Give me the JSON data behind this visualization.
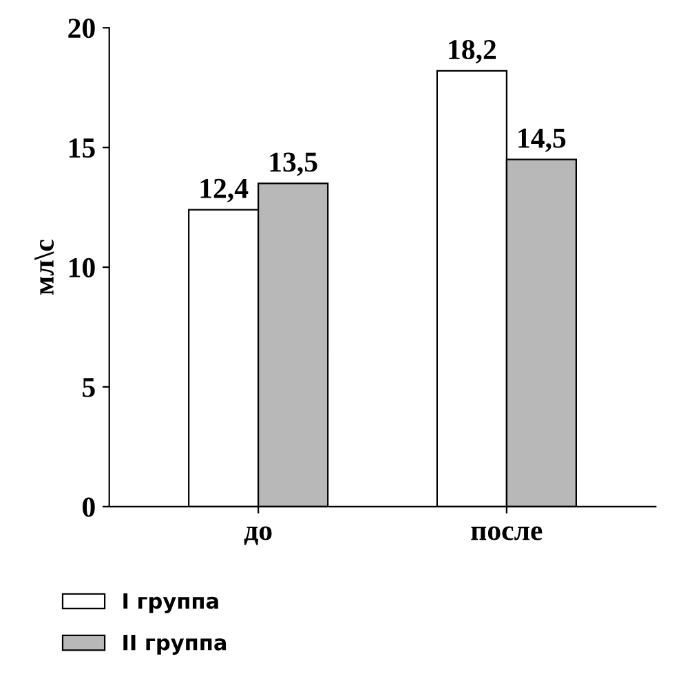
{
  "chart_data": {
    "type": "bar",
    "ylabel": "мл\\с",
    "categories": [
      "до",
      "после"
    ],
    "series": [
      {
        "name": "I группа",
        "color": "#ffffff",
        "values": [
          12.4,
          18.2
        ],
        "value_labels": [
          "12,4",
          "18,2"
        ]
      },
      {
        "name": "II группа",
        "color": "#b8b8b8",
        "values": [
          13.5,
          14.5
        ],
        "value_labels": [
          "13,5",
          "14,5"
        ]
      }
    ],
    "ylim": [
      0,
      20
    ],
    "yticks": [
      0,
      5,
      10,
      15,
      20
    ],
    "grid": false,
    "legend": "bottom left"
  }
}
